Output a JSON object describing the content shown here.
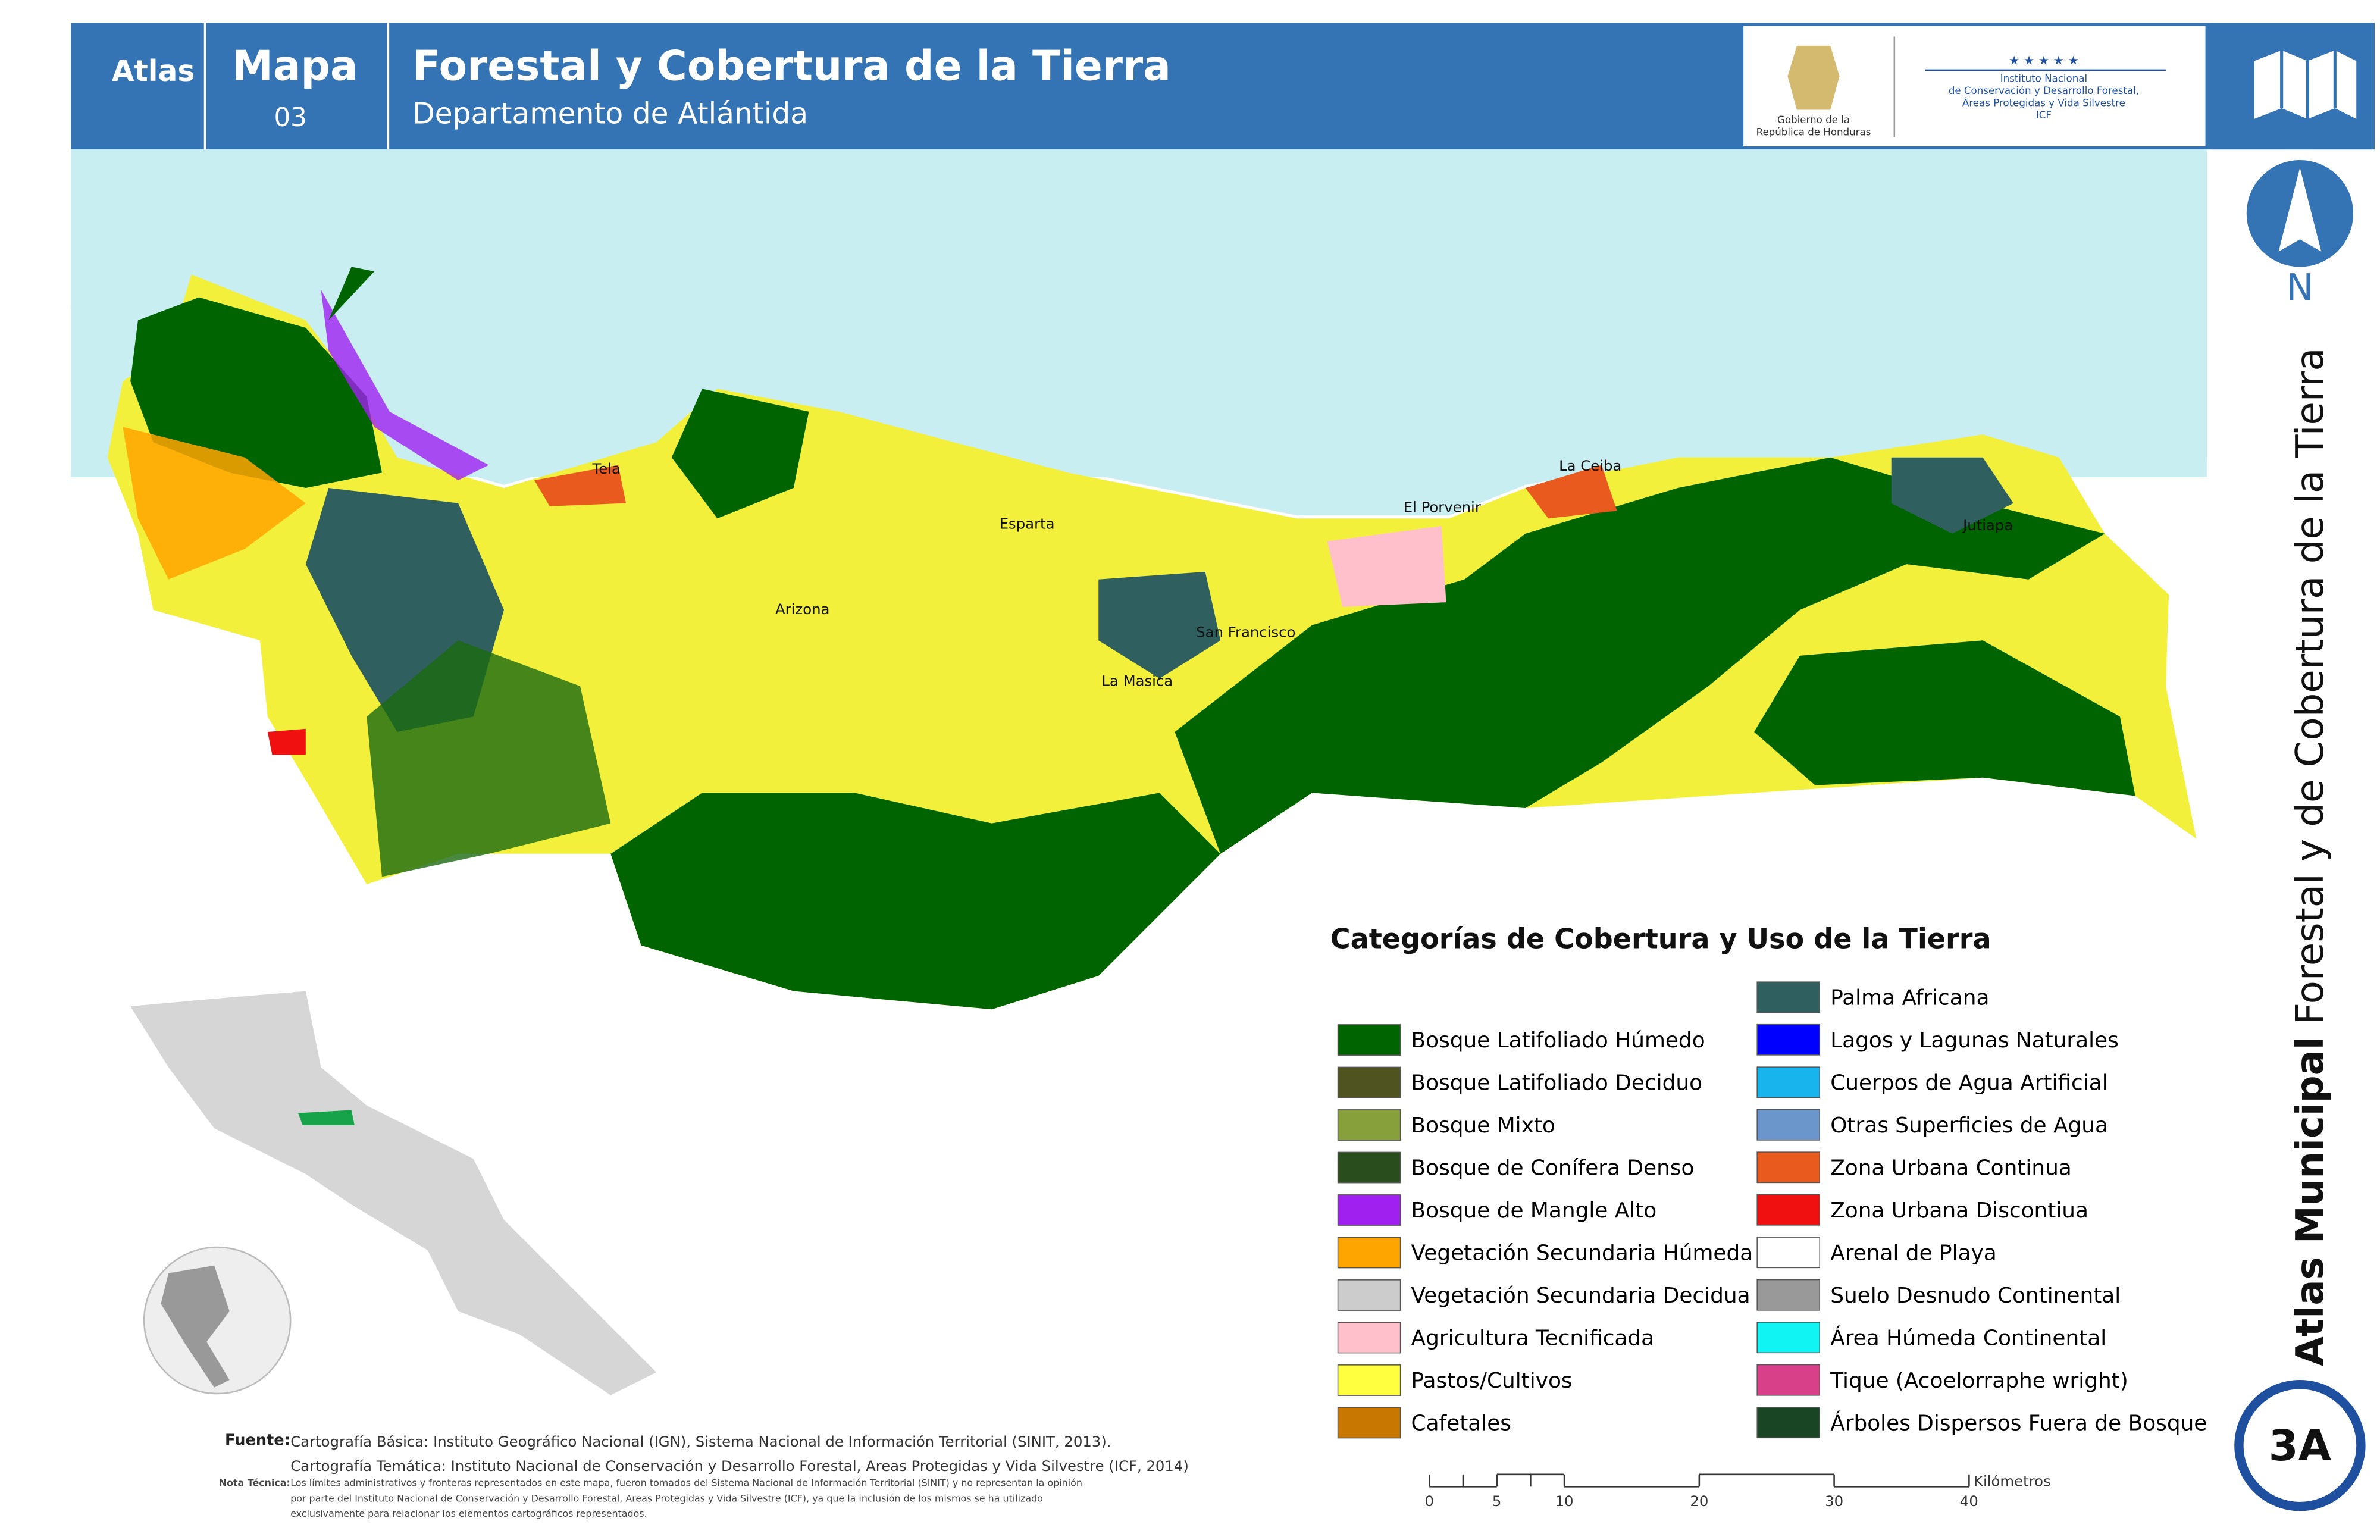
{
  "header": {
    "atlas": "Atlas",
    "mapa": "Mapa",
    "number": "03",
    "title": "Forestal y Cobertura de la Tierra",
    "subtitle": "Departamento de Atlántida",
    "logo_gov": [
      "Gobierno de la",
      "República de Honduras"
    ],
    "logo_icf": [
      "Instituto Nacional",
      "de Conservación y Desarrollo Forestal,",
      "Áreas Protegidas y Vida Silvestre",
      "ICF"
    ]
  },
  "places": [
    "Tela",
    "Esparta",
    "Arizona",
    "San Francisco",
    "La Masica",
    "El Porvenir",
    "La Ceiba",
    "Jutiapa"
  ],
  "legend": {
    "title": "Categorías de Cobertura y Uso de la Tierra",
    "items": [
      {
        "label": "Bosque Latifoliado Húmedo",
        "color": "#006400"
      },
      {
        "label": "Bosque Latifoliado Deciduo",
        "color": "#4f5320"
      },
      {
        "label": "Bosque Mixto",
        "color": "#88a03c"
      },
      {
        "label": "Bosque de Conífera Denso",
        "color": "#2a4d1e"
      },
      {
        "label": "Bosque de Mangle Alto",
        "color": "#a020f0"
      },
      {
        "label": "Vegetación Secundaria Húmeda",
        "color": "#ffa500"
      },
      {
        "label": "Vegetación Secundaria Decidua",
        "color": "#cccccc"
      },
      {
        "label": "Agricultura Tecnificada",
        "color": "#ffc0cb"
      },
      {
        "label": "Pastos/Cultivos",
        "color": "#ffff40"
      },
      {
        "label": "Cafetales",
        "color": "#c87800"
      },
      {
        "label": "Palma Africana",
        "color": "#2f5f5f"
      },
      {
        "label": "Lagos y Lagunas Naturales",
        "color": "#0000ff"
      },
      {
        "label": "Cuerpos de Agua Artificial",
        "color": "#18b4ee"
      },
      {
        "label": "Otras Superficies de Agua",
        "color": "#6a96cc"
      },
      {
        "label": "Zona Urbana Continua",
        "color": "#e85a1e"
      },
      {
        "label": "Zona Urbana Discontiua",
        "color": "#f01010"
      },
      {
        "label": "Arenal de Playa",
        "color": "#ffffff"
      },
      {
        "label": "Suelo Desnudo Continental",
        "color": "#999999"
      },
      {
        "label": "Área Húmeda Continental",
        "color": "#10f4f4"
      },
      {
        "label": "Tique (Acoelorraphe wright)",
        "color": "#d8408a"
      },
      {
        "label": "Árboles Dispersos Fuera de Bosque",
        "color": "#1a4524"
      }
    ]
  },
  "scale_bar": {
    "unit": "Kilómetros",
    "ticks": [
      0,
      5,
      10,
      20,
      30,
      40
    ]
  },
  "side": {
    "atlas_municipal": "Atlas Municipal",
    "title": "Forestal y de Cobertura de la Tierra",
    "north": "N",
    "code": "3A"
  },
  "source": {
    "label": "Fuente:",
    "lines": [
      "Cartografía Básica: Instituto Geográfico Nacional (IGN), Sistema Nacional de Información Territorial (SINIT, 2013).",
      "Cartografía Temática: Instituto Nacional de Conservación y Desarrollo Forestal, Areas Protegidas y Vida Silvestre (ICF, 2014)"
    ],
    "note_label": "Nota Técnica:",
    "note_lines": [
      "Los límites administrativos y fronteras representados en este mapa, fueron tomados del Sistema Nacional de Información Territorial (SINIT) y no representan la opinión",
      "por parte del Instituto Nacional de Conservación y Desarrollo Forestal, Areas Protegidas y Vida Silvestre (ICF), ya que la inclusión de los mismos se ha utilizado",
      "exclusivamente para relacionar los elementos cartográficos representados."
    ]
  }
}
